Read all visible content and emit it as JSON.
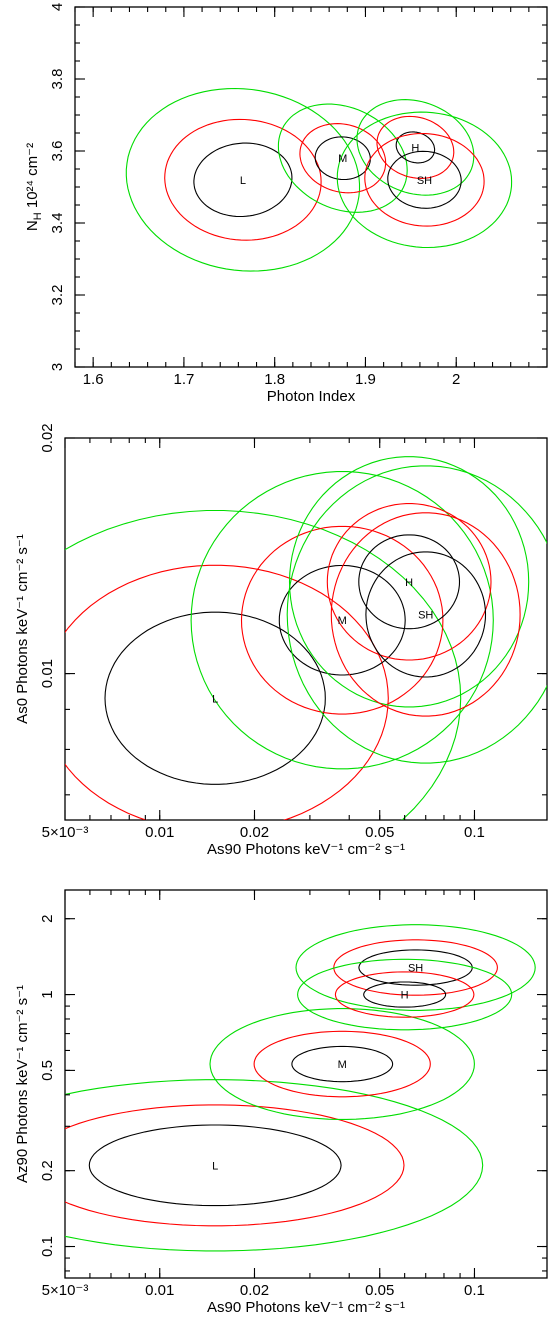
{
  "colors": {
    "black": "#000000",
    "red": "#ff0000",
    "green": "#00dd00"
  },
  "chart_data": [
    {
      "type": "contour",
      "xlabel": "Photon Index",
      "ylabel_main": "N",
      "ylabel_sub": "H",
      "ylabel_rest": " 10²⁴ cm⁻²",
      "xscale": "linear",
      "yscale": "linear",
      "xlim": [
        1.58,
        2.1
      ],
      "ylim": [
        3.0,
        4.0
      ],
      "xticks": [
        {
          "v": 1.6,
          "t": "1.6"
        },
        {
          "v": 1.7,
          "t": "1.7"
        },
        {
          "v": 1.8,
          "t": "1.8"
        },
        {
          "v": 1.9,
          "t": "1.9"
        },
        {
          "v": 2.0,
          "t": "2"
        }
      ],
      "yticks": [
        {
          "v": 3.0,
          "t": "3"
        },
        {
          "v": 3.2,
          "t": "3.2"
        },
        {
          "v": 3.4,
          "t": "3.4"
        },
        {
          "v": 3.6,
          "t": "3.6"
        },
        {
          "v": 3.8,
          "t": "3.8"
        },
        {
          "v": 4.0,
          "t": "4"
        }
      ],
      "regions": [
        {
          "label": "L",
          "cx": 1.765,
          "cy": 3.52,
          "rx": [
            0.055,
            0.085,
            0.125
          ],
          "ry": [
            0.1,
            0.17,
            0.26
          ],
          "rot": 0.62
        },
        {
          "label": "M",
          "cx": 1.875,
          "cy": 3.58,
          "rx": [
            0.03,
            0.045,
            0.065
          ],
          "ry": [
            0.06,
            0.1,
            0.16
          ],
          "rot": 0.58
        },
        {
          "label": "H",
          "cx": 1.955,
          "cy": 3.61,
          "rx": [
            0.02,
            0.04,
            0.06
          ],
          "ry": [
            0.045,
            0.09,
            0.14
          ],
          "rot": 0.6
        },
        {
          "label": "SH",
          "cx": 1.965,
          "cy": 3.52,
          "rx": [
            0.04,
            0.065,
            0.095
          ],
          "ry": [
            0.08,
            0.13,
            0.19
          ],
          "rot": 0.55
        }
      ]
    },
    {
      "type": "contour",
      "xlabel": "As90 Photons keV⁻¹ cm⁻² s⁻¹",
      "ylabel": "As0 Photons keV⁻¹ cm⁻² s⁻¹",
      "xscale": "log",
      "yscale": "log",
      "xlim": [
        0.005,
        0.17
      ],
      "ylim": [
        0.0065,
        0.02
      ],
      "xticks": [
        {
          "v": 0.005,
          "t": "5×10⁻³"
        },
        {
          "v": 0.01,
          "t": "0.01"
        },
        {
          "v": 0.02,
          "t": "0.02"
        },
        {
          "v": 0.05,
          "t": "0.05"
        },
        {
          "v": 0.1,
          "t": "0.1"
        }
      ],
      "yticks": [
        {
          "v": 0.01,
          "t": "0.01"
        },
        {
          "v": 0.02,
          "t": "0.02"
        }
      ],
      "regions": [
        {
          "label": "L",
          "cx": 0.015,
          "cy": 0.0093,
          "rx": [
            0.35,
            0.55,
            0.78
          ],
          "ry": [
            0.11,
            0.17,
            0.24
          ],
          "rot": 0.0
        },
        {
          "label": "M",
          "cx": 0.038,
          "cy": 0.0117,
          "rx": [
            0.2,
            0.32,
            0.48
          ],
          "ry": [
            0.07,
            0.12,
            0.19
          ],
          "rot": 0.0
        },
        {
          "label": "H",
          "cx": 0.062,
          "cy": 0.0131,
          "rx": [
            0.16,
            0.26,
            0.38
          ],
          "ry": [
            0.06,
            0.1,
            0.16
          ],
          "rot": 0.0
        },
        {
          "label": "SH",
          "cx": 0.07,
          "cy": 0.0119,
          "rx": [
            0.19,
            0.3,
            0.44
          ],
          "ry": [
            0.08,
            0.13,
            0.19
          ],
          "rot": 0.0
        }
      ]
    },
    {
      "type": "contour",
      "xlabel": "As90 Photons keV⁻¹ cm⁻² s⁻¹",
      "ylabel": "Az90 Photons keV⁻¹ cm⁻² s⁻¹",
      "xscale": "log",
      "yscale": "log",
      "xlim": [
        0.005,
        0.17
      ],
      "ylim": [
        0.075,
        2.6
      ],
      "xticks": [
        {
          "v": 0.005,
          "t": "5×10⁻³"
        },
        {
          "v": 0.01,
          "t": "0.01"
        },
        {
          "v": 0.02,
          "t": "0.02"
        },
        {
          "v": 0.05,
          "t": "0.05"
        },
        {
          "v": 0.1,
          "t": "0.1"
        }
      ],
      "yticks": [
        {
          "v": 0.1,
          "t": "0.1"
        },
        {
          "v": 0.2,
          "t": "0.2"
        },
        {
          "v": 0.5,
          "t": "0.5"
        },
        {
          "v": 1,
          "t": "1"
        },
        {
          "v": 2,
          "t": "2"
        }
      ],
      "regions": [
        {
          "label": "L",
          "cx": 0.015,
          "cy": 0.21,
          "rx": [
            0.4,
            0.6,
            0.85
          ],
          "ry": [
            0.16,
            0.24,
            0.34
          ],
          "rot": 0.0
        },
        {
          "label": "M",
          "cx": 0.038,
          "cy": 0.53,
          "rx": [
            0.16,
            0.28,
            0.42
          ],
          "ry": [
            0.07,
            0.13,
            0.22
          ],
          "rot": 0.0
        },
        {
          "label": "SH",
          "cx": 0.065,
          "cy": 1.28,
          "rx": [
            0.18,
            0.26,
            0.38
          ],
          "ry": [
            0.07,
            0.11,
            0.17
          ],
          "rot": 0.0
        },
        {
          "label": "H",
          "cx": 0.06,
          "cy": 1.0,
          "rx": [
            0.13,
            0.22,
            0.34
          ],
          "ry": [
            0.05,
            0.09,
            0.14
          ],
          "rot": 0.0
        }
      ]
    }
  ]
}
